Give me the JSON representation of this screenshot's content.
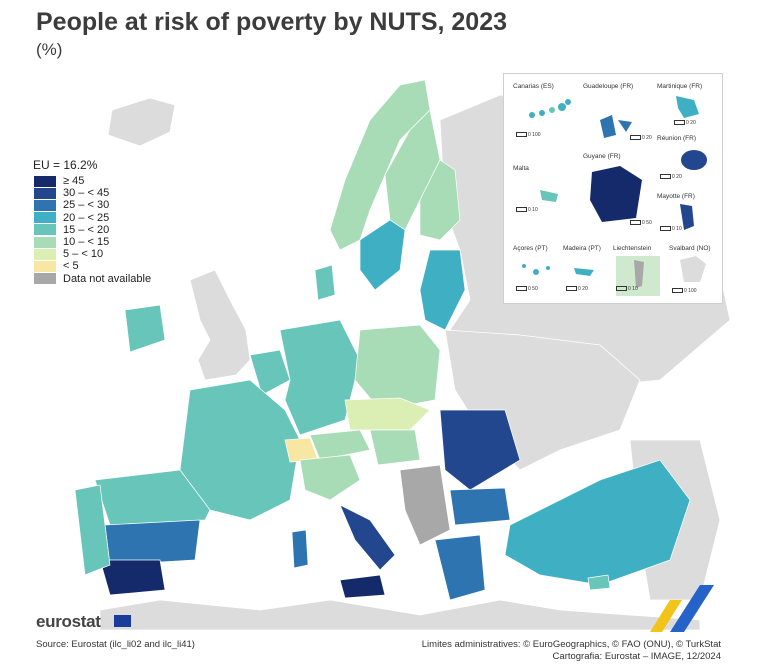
{
  "title": "People at risk of poverty by NUTS, 2023",
  "subtitle": "(%)",
  "legend": {
    "title": "EU = 16.2%",
    "items": [
      {
        "label": "≥ 45",
        "color": "#142a6b"
      },
      {
        "label": "30 – < 45",
        "color": "#23478f"
      },
      {
        "label": "25 – < 30",
        "color": "#2e74b0"
      },
      {
        "label": "20 – < 25",
        "color": "#3fb0c4"
      },
      {
        "label": "15 – < 20",
        "color": "#68c5b9"
      },
      {
        "label": "10 – < 15",
        "color": "#a8dcb6"
      },
      {
        "label": "5 – < 10",
        "color": "#dbeeb3"
      },
      {
        "label": "< 5",
        "color": "#f8e7a2"
      },
      {
        "label": "Data not available",
        "color": "#a8a8a8"
      }
    ]
  },
  "insets": [
    {
      "name": "Canarias (ES)",
      "scale": "0   100"
    },
    {
      "name": "Guadeloupe (FR)",
      "scale": "0   20"
    },
    {
      "name": "Martinique (FR)",
      "scale": "0   20"
    },
    {
      "name": "Guyane (FR)",
      "scale": "0   50"
    },
    {
      "name": "Réunion (FR)",
      "scale": "0   20"
    },
    {
      "name": "Malta",
      "scale": "0   10"
    },
    {
      "name": "Mayotte (FR)",
      "scale": "0   10"
    },
    {
      "name": "Açores (PT)",
      "scale": "0   50"
    },
    {
      "name": "Madeira (PT)",
      "scale": "0   20"
    },
    {
      "name": "Liechtenstein",
      "scale": "0   10"
    },
    {
      "name": "Svalbard (NO)",
      "scale": "0 100"
    }
  ],
  "footer": {
    "logo": "eurostat",
    "source": "Source: Eurostat (ilc_li02 and ilc_li41)",
    "boundaries": "Limites administratives: © EuroGeographics, © FAO (ONU), © TurkStat",
    "cartography": "Cartografia: Eurostat – IMAGE, 12/2024"
  },
  "colors": {
    "sea": "#ffffff",
    "non_eu_land": "#dcdcdc",
    "border": "#ffffff",
    "accent_yellow": "#f2c318",
    "accent_blue": "#2563c9"
  }
}
